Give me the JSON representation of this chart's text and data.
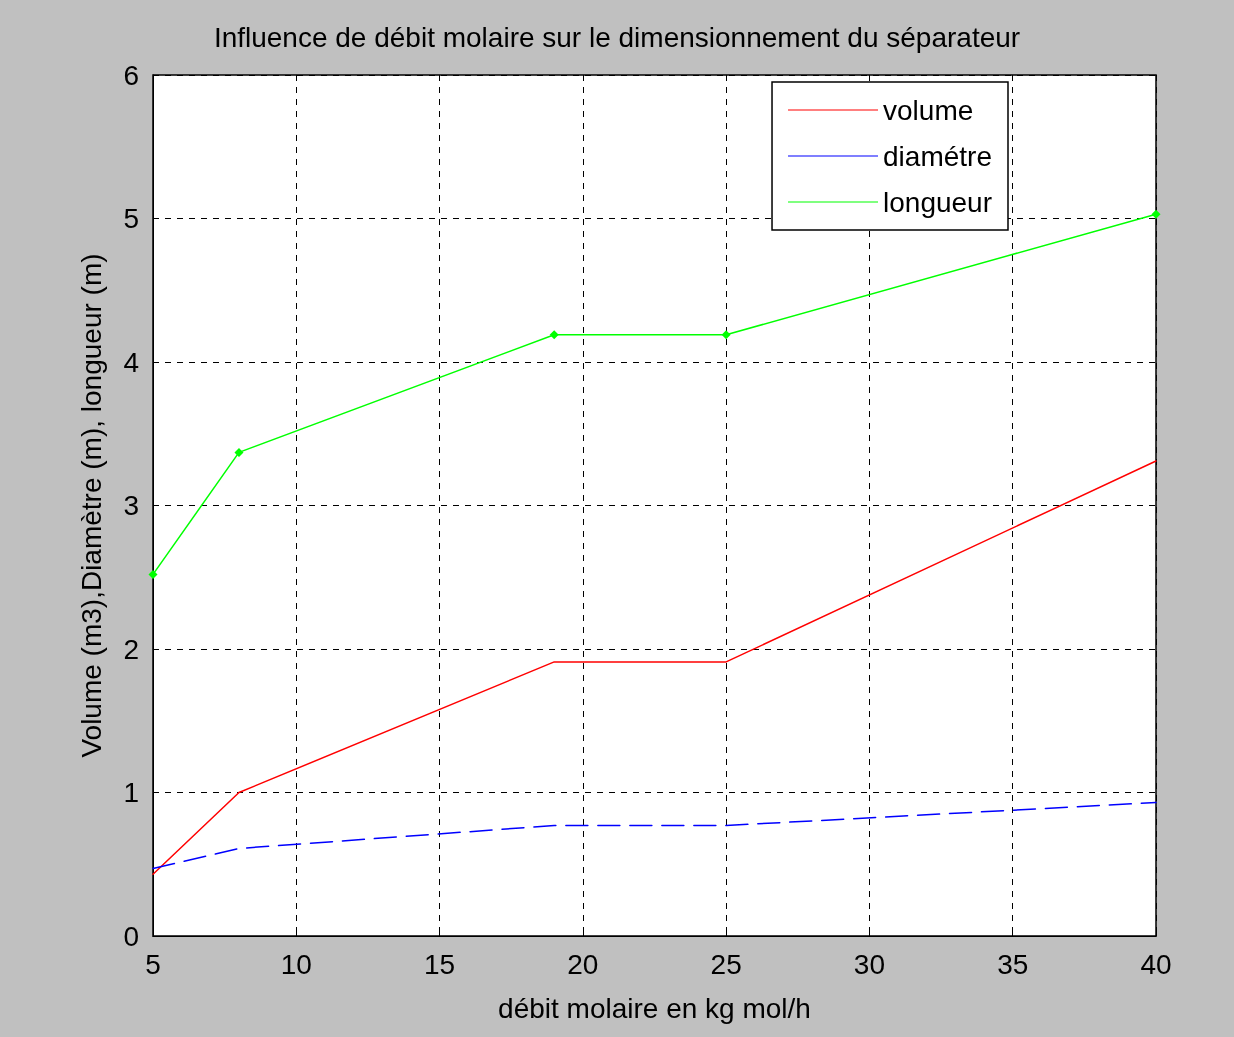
{
  "chart_data": {
    "type": "line",
    "title": "Influence de débit molaire sur le dimensionnement du séparateur",
    "xlabel": "débit molaire en kg mol/h",
    "ylabel": "Volume (m3),Diamètre (m), longueur (m)",
    "x": [
      5,
      8,
      19,
      25,
      40
    ],
    "series": [
      {
        "name": "volume",
        "color": "#ff0000",
        "values": [
          0.43,
          1.0,
          1.91,
          1.91,
          3.31
        ],
        "marker": "none",
        "line_style": "solid"
      },
      {
        "name": "diamétre",
        "color": "#0000ff",
        "values": [
          0.47,
          0.61,
          0.77,
          0.77,
          0.93
        ],
        "marker": "none",
        "line_style": "dashed"
      },
      {
        "name": "longueur",
        "color": "#00ff00",
        "values": [
          2.52,
          3.37,
          4.19,
          4.19,
          5.03
        ],
        "marker": "diamond",
        "line_style": "solid"
      }
    ],
    "xlim": [
      5,
      40
    ],
    "xticks": [
      5,
      10,
      15,
      20,
      25,
      30,
      35,
      40
    ],
    "ylim": [
      0,
      6
    ],
    "yticks": [
      0,
      1,
      2,
      3,
      4,
      5,
      6
    ],
    "grid": true,
    "legend": "top right"
  }
}
